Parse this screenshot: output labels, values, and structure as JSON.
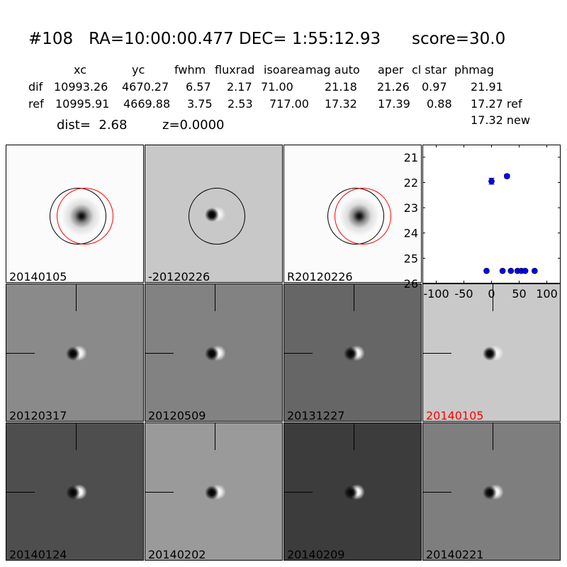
{
  "title": "#108   RA=10:00:00.477 DEC= 1:55:12.93      score=30.0",
  "table": {
    "headers": [
      "xc",
      "yc",
      "fwhm",
      "fluxrad",
      "isoarea",
      "mag auto",
      "aper",
      "cl star",
      "phmag"
    ],
    "rows": [
      {
        "label": "dif",
        "values": [
          "10993.26",
          "4670.27",
          "6.57",
          "2.17",
          "71.00",
          "21.18",
          "21.26",
          "0.97",
          "21.91"
        ]
      },
      {
        "label": "ref",
        "values": [
          "10995.91",
          "4669.88",
          "3.75",
          "2.53",
          "717.00",
          "17.32",
          "17.39",
          "0.88",
          "17.27 ref"
        ]
      }
    ],
    "extra": "17.32 new"
  },
  "dist": "dist=  2.68",
  "z": "z=0.0000",
  "stamps": [
    {
      "label": "20140105",
      "bg": "#fbfbfb",
      "style": "ref"
    },
    {
      "label": "-20120226",
      "bg": "#c8c8c8",
      "style": "diff"
    },
    {
      "label": "R20120226",
      "bg": "#fbfbfb",
      "style": "ref"
    },
    {
      "label": "20120317",
      "bg": "#8a8a8a",
      "style": "diff"
    },
    {
      "label": "20120509",
      "bg": "#828282",
      "style": "diff"
    },
    {
      "label": "20131227",
      "bg": "#666666",
      "style": "diff"
    },
    {
      "label": "20140105",
      "bg": "#c9c9c9",
      "style": "diff",
      "label_color": "#ff0000"
    },
    {
      "label": "20140124",
      "bg": "#4e4e4e",
      "style": "diff"
    },
    {
      "label": "20140202",
      "bg": "#9a9a9a",
      "style": "diff"
    },
    {
      "label": "20140209",
      "bg": "#3c3c3c",
      "style": "diff"
    },
    {
      "label": "20140221",
      "bg": "#7e7e7e",
      "style": "diff"
    }
  ],
  "chart_data": {
    "type": "scatter",
    "xlim": [
      -125,
      125
    ],
    "ylim": [
      26,
      20.5
    ],
    "y_inverted": true,
    "xticks": [
      "-100",
      "-50",
      "0",
      "50",
      "100"
    ],
    "xtick_values": [
      -100,
      -50,
      0,
      50,
      100
    ],
    "yticks": [
      "21",
      "22",
      "23",
      "24",
      "25",
      "26"
    ],
    "ytick_values": [
      21,
      22,
      23,
      24,
      25,
      26
    ],
    "color": "#0000ff",
    "points": [
      {
        "x": 0,
        "y": 21.95,
        "err": 0.12
      },
      {
        "x": 28,
        "y": 21.75,
        "err": 0.07
      },
      {
        "x": -9,
        "y": 25.5,
        "err": 0.03
      },
      {
        "x": 20,
        "y": 25.5,
        "err": 0.03
      },
      {
        "x": 35,
        "y": 25.5,
        "err": 0.03
      },
      {
        "x": 47,
        "y": 25.5,
        "err": 0.03
      },
      {
        "x": 54,
        "y": 25.5,
        "err": 0.03
      },
      {
        "x": 61,
        "y": 25.5,
        "err": 0.03
      },
      {
        "x": 78,
        "y": 25.5,
        "err": 0.03
      }
    ]
  }
}
